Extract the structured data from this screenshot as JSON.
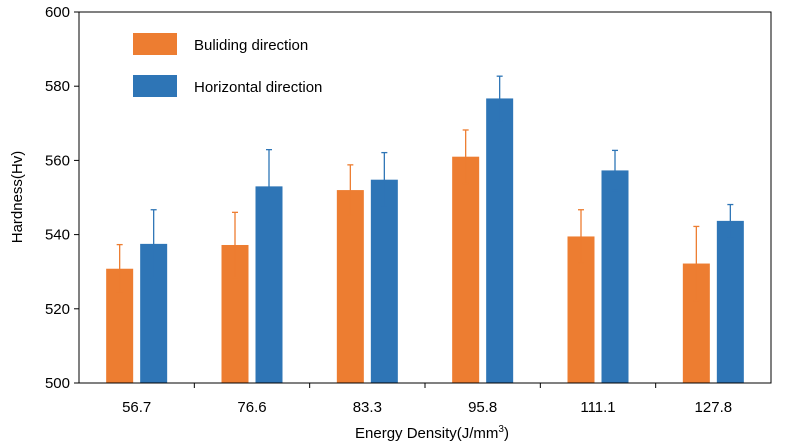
{
  "chart_data": {
    "type": "bar",
    "categories": [
      "56.7",
      "76.6",
      "83.3",
      "95.8",
      "111.1",
      "127.8"
    ],
    "series": [
      {
        "name": "Buliding direction",
        "color": "#ED7D31",
        "values": [
          530.8,
          537.2,
          552.0,
          561.0,
          539.5,
          532.2
        ],
        "errors": [
          6.5,
          8.8,
          6.8,
          7.2,
          7.2,
          10.0
        ]
      },
      {
        "name": "Horizontal direction",
        "color": "#2E75B6",
        "values": [
          537.5,
          553.0,
          554.8,
          576.7,
          557.3,
          543.7
        ],
        "errors": [
          9.2,
          9.9,
          7.3,
          6.0,
          5.4,
          4.4
        ]
      }
    ],
    "title": "",
    "xlabel": "Energy Density(J/mm",
    "xlabel_sup": "3",
    "xlabel_end": ")",
    "ylabel": "Hardness(Hv)",
    "ylim": [
      500,
      600
    ],
    "yticks": [
      "500",
      "520",
      "540",
      "560",
      "580",
      "600"
    ],
    "grid": false,
    "legend_position": "top-left"
  }
}
